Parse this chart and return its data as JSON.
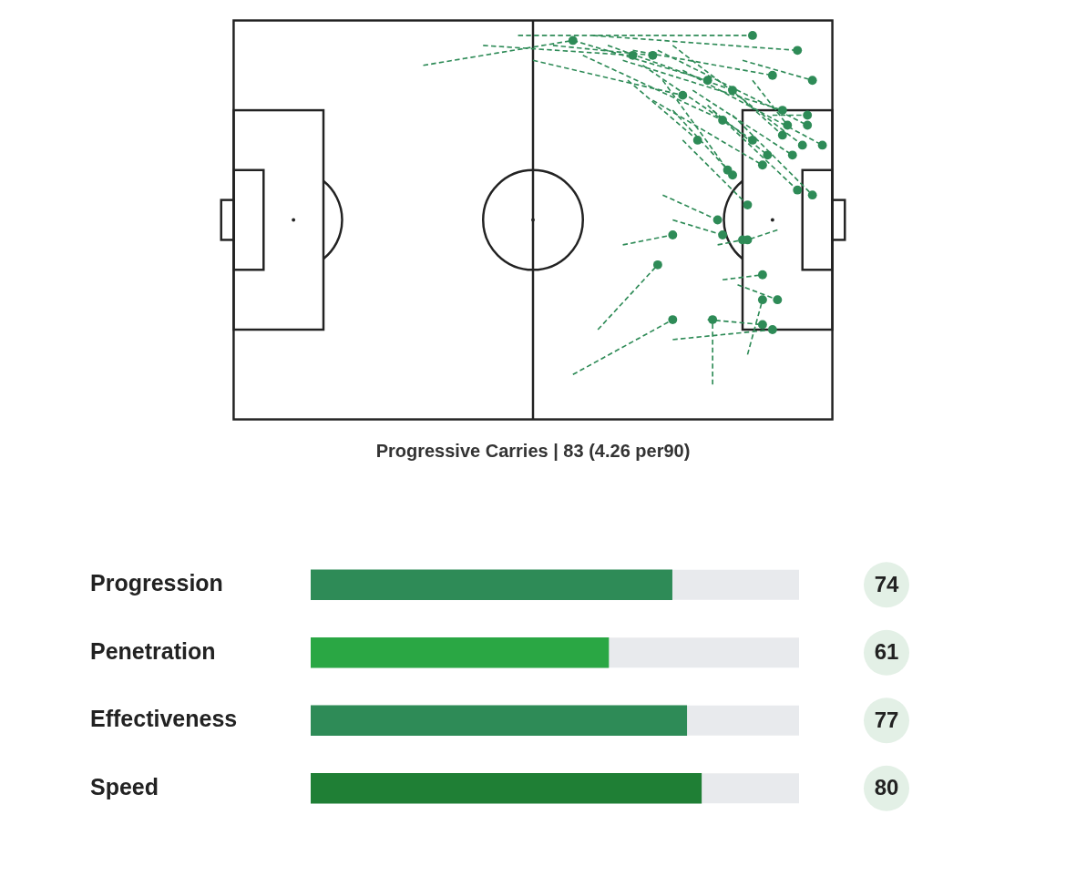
{
  "chart_data": [
    {
      "type": "other",
      "title": "Progressive Carries | 83 (4.26 per90)"
    },
    {
      "type": "bar",
      "orientation": "horizontal",
      "categories": [
        "Progression",
        "Penetration",
        "Effectiveness",
        "Speed"
      ],
      "values": [
        74,
        61,
        77,
        80
      ],
      "colors": [
        "#2e8b57",
        "#2aa744",
        "#2e8b57",
        "#1f7f35"
      ],
      "xlim": [
        0,
        100
      ],
      "data_labels": true,
      "tick_labels": "y",
      "grid": false
    }
  ]
}
